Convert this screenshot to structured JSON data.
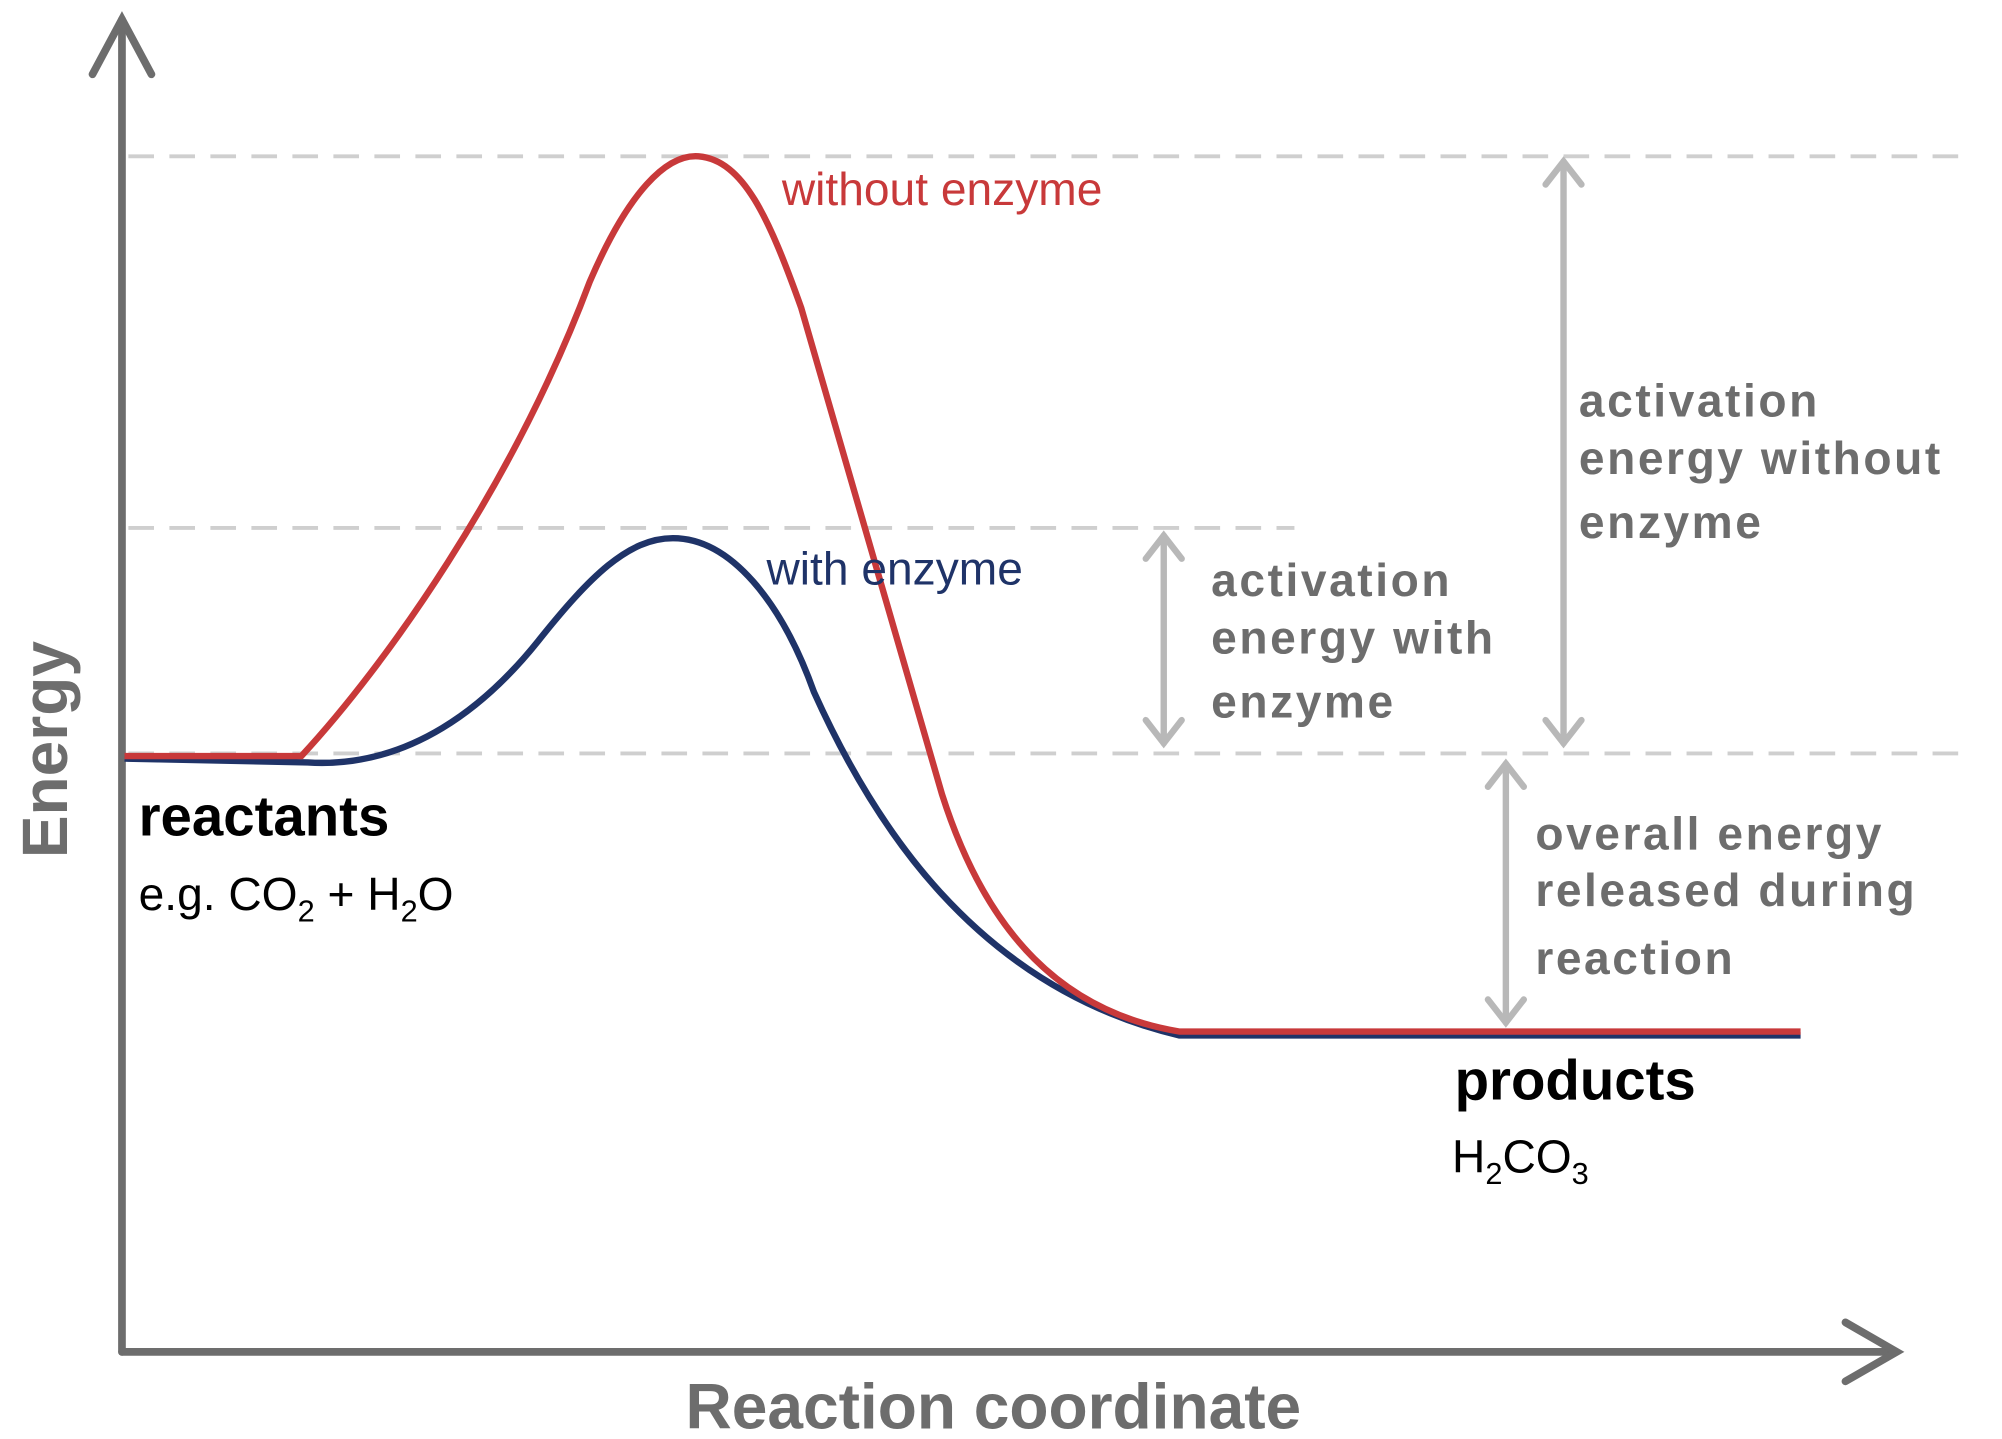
{
  "axes": {
    "y_label": "Energy",
    "x_label": "Reaction coordinate"
  },
  "curves": {
    "without_enzyme": "without enzyme",
    "with_enzyme": "with enzyme"
  },
  "annotations": {
    "activation_with": [
      "activation",
      "energy with",
      "enzyme"
    ],
    "activation_without": [
      "activation",
      "energy without",
      "enzyme"
    ],
    "overall": [
      "overall energy",
      "released during",
      "reaction"
    ]
  },
  "reactants": {
    "label": "reactants",
    "formula": [
      "e.g. CO",
      "2",
      " + H",
      "2",
      "O"
    ]
  },
  "products": {
    "label": "products",
    "formula": [
      "H",
      "2",
      "CO",
      "3"
    ]
  }
}
